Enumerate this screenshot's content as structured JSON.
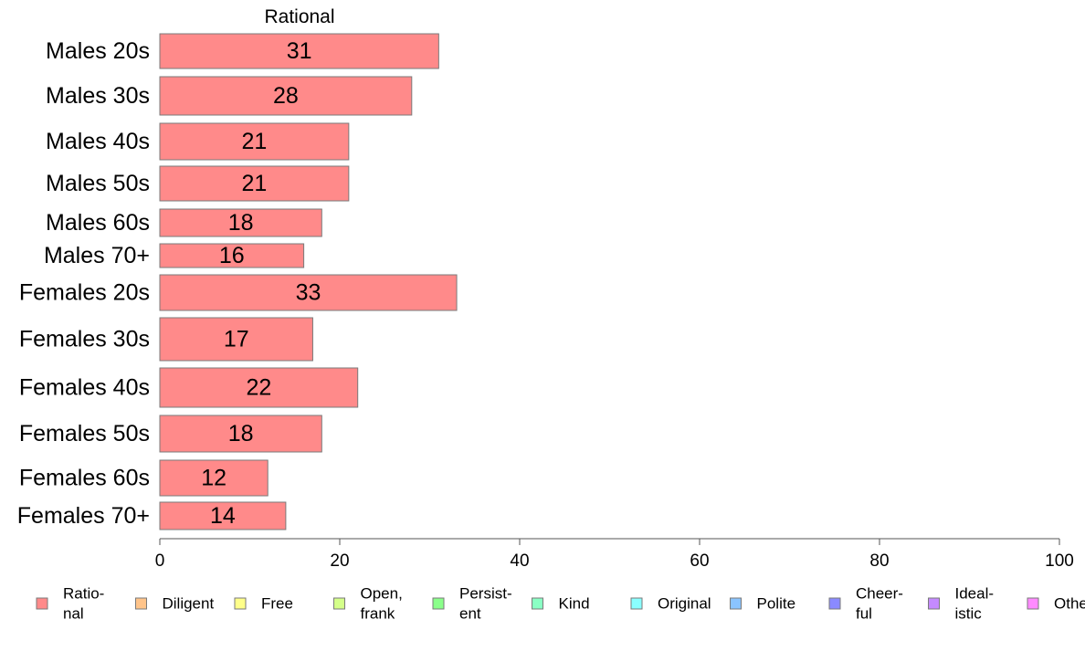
{
  "chart_data": {
    "type": "bar",
    "orientation": "horizontal",
    "title": "Rational",
    "categories": [
      "Males 20s",
      "Males 30s",
      "Males 40s",
      "Males 50s",
      "Males 60s",
      "Males 70+",
      "Females 20s",
      "Females 30s",
      "Females 40s",
      "Females 50s",
      "Females 60s",
      "Females 70+"
    ],
    "values": [
      31,
      28,
      21,
      21,
      18,
      16,
      33,
      17,
      22,
      18,
      12,
      14
    ],
    "value_labels": [
      "31",
      "28",
      "21",
      "21",
      "18",
      "16",
      "33",
      "17",
      "22",
      "18",
      "12",
      "14"
    ],
    "bar_color": "#ff8a8a",
    "xlim": [
      0,
      100
    ],
    "xticks": [
      0,
      20,
      40,
      60,
      80,
      100
    ],
    "xtick_labels": [
      "0",
      "20",
      "40",
      "60",
      "80",
      "100"
    ],
    "grid": false,
    "legend_position": "bottom",
    "legend": [
      {
        "lines": [
          "Ratio-",
          "nal"
        ],
        "color": "#ff8a8a"
      },
      {
        "lines": [
          "Diligent"
        ],
        "color": "#ffc48a"
      },
      {
        "lines": [
          "Free"
        ],
        "color": "#ffff8a"
      },
      {
        "lines": [
          "Open,",
          "frank"
        ],
        "color": "#d4ff8a"
      },
      {
        "lines": [
          "Persist-",
          "ent"
        ],
        "color": "#8aff8a"
      },
      {
        "lines": [
          "Kind"
        ],
        "color": "#8affc4"
      },
      {
        "lines": [
          "Original"
        ],
        "color": "#8affff"
      },
      {
        "lines": [
          "Polite"
        ],
        "color": "#8ac4ff"
      },
      {
        "lines": [
          "Cheer-",
          "ful"
        ],
        "color": "#8a8aff"
      },
      {
        "lines": [
          "Ideal-",
          "istic"
        ],
        "color": "#c48aff"
      },
      {
        "lines": [
          "Other"
        ],
        "color": "#ff8aff"
      }
    ]
  }
}
